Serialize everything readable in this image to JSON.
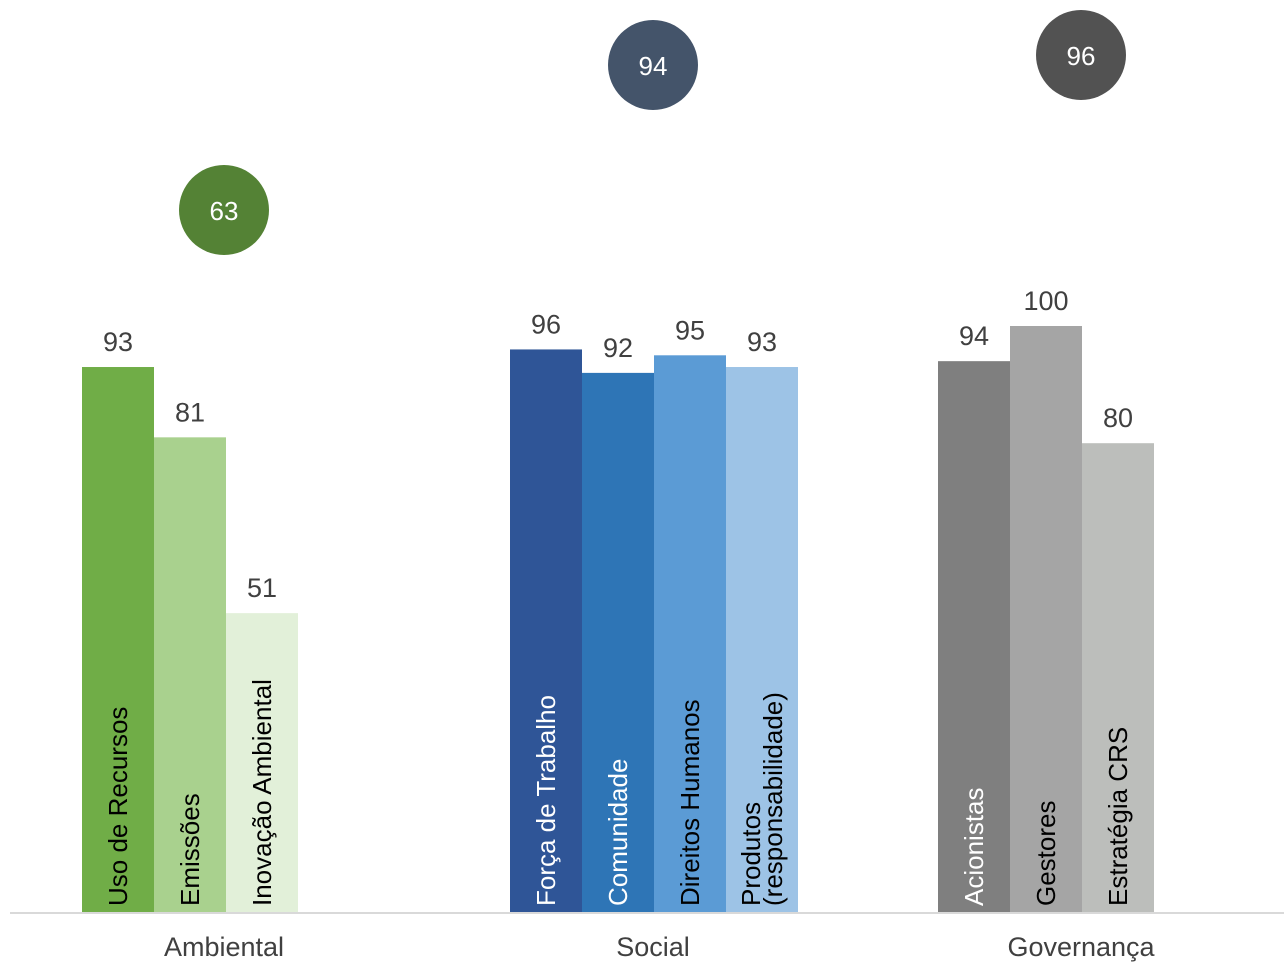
{
  "chart_data": {
    "type": "bar",
    "ylim": [
      0,
      100
    ],
    "groups": [
      {
        "name": "Ambiental",
        "score": 63,
        "score_color": "#548235",
        "bars": [
          {
            "label": "Uso de Recursos",
            "value": 93,
            "color": "#70AD47",
            "text_color": "#000000"
          },
          {
            "label": "Emissões",
            "value": 81,
            "color": "#A9D18E",
            "text_color": "#000000"
          },
          {
            "label": "Inovação Ambiental",
            "value": 51,
            "color": "#E2F0D9",
            "text_color": "#000000"
          }
        ]
      },
      {
        "name": "Social",
        "score": 94,
        "score_color": "#44546A",
        "bars": [
          {
            "label": "Força de Trabalho",
            "value": 96,
            "color": "#2F5597",
            "text_color": "#FFFFFF"
          },
          {
            "label": "Comunidade",
            "value": 92,
            "color": "#2E75B6",
            "text_color": "#FFFFFF"
          },
          {
            "label": "Direitos Humanos",
            "value": 95,
            "color": "#5B9BD5",
            "text_color": "#000000"
          },
          {
            "label": "Produtos (responsabilidade)",
            "value": 93,
            "color": "#9DC3E6",
            "text_color": "#000000"
          }
        ]
      },
      {
        "name": "Governança",
        "score": 96,
        "score_color": "#525252",
        "bars": [
          {
            "label": "Acionistas",
            "value": 94,
            "color": "#7F7F7F",
            "text_color": "#FFFFFF"
          },
          {
            "label": "Gestores",
            "value": 100,
            "color": "#A5A5A5",
            "text_color": "#000000"
          },
          {
            "label": "Estratégia CRS",
            "value": 80,
            "color": "#BCBEBB",
            "text_color": "#000000"
          }
        ]
      }
    ]
  }
}
